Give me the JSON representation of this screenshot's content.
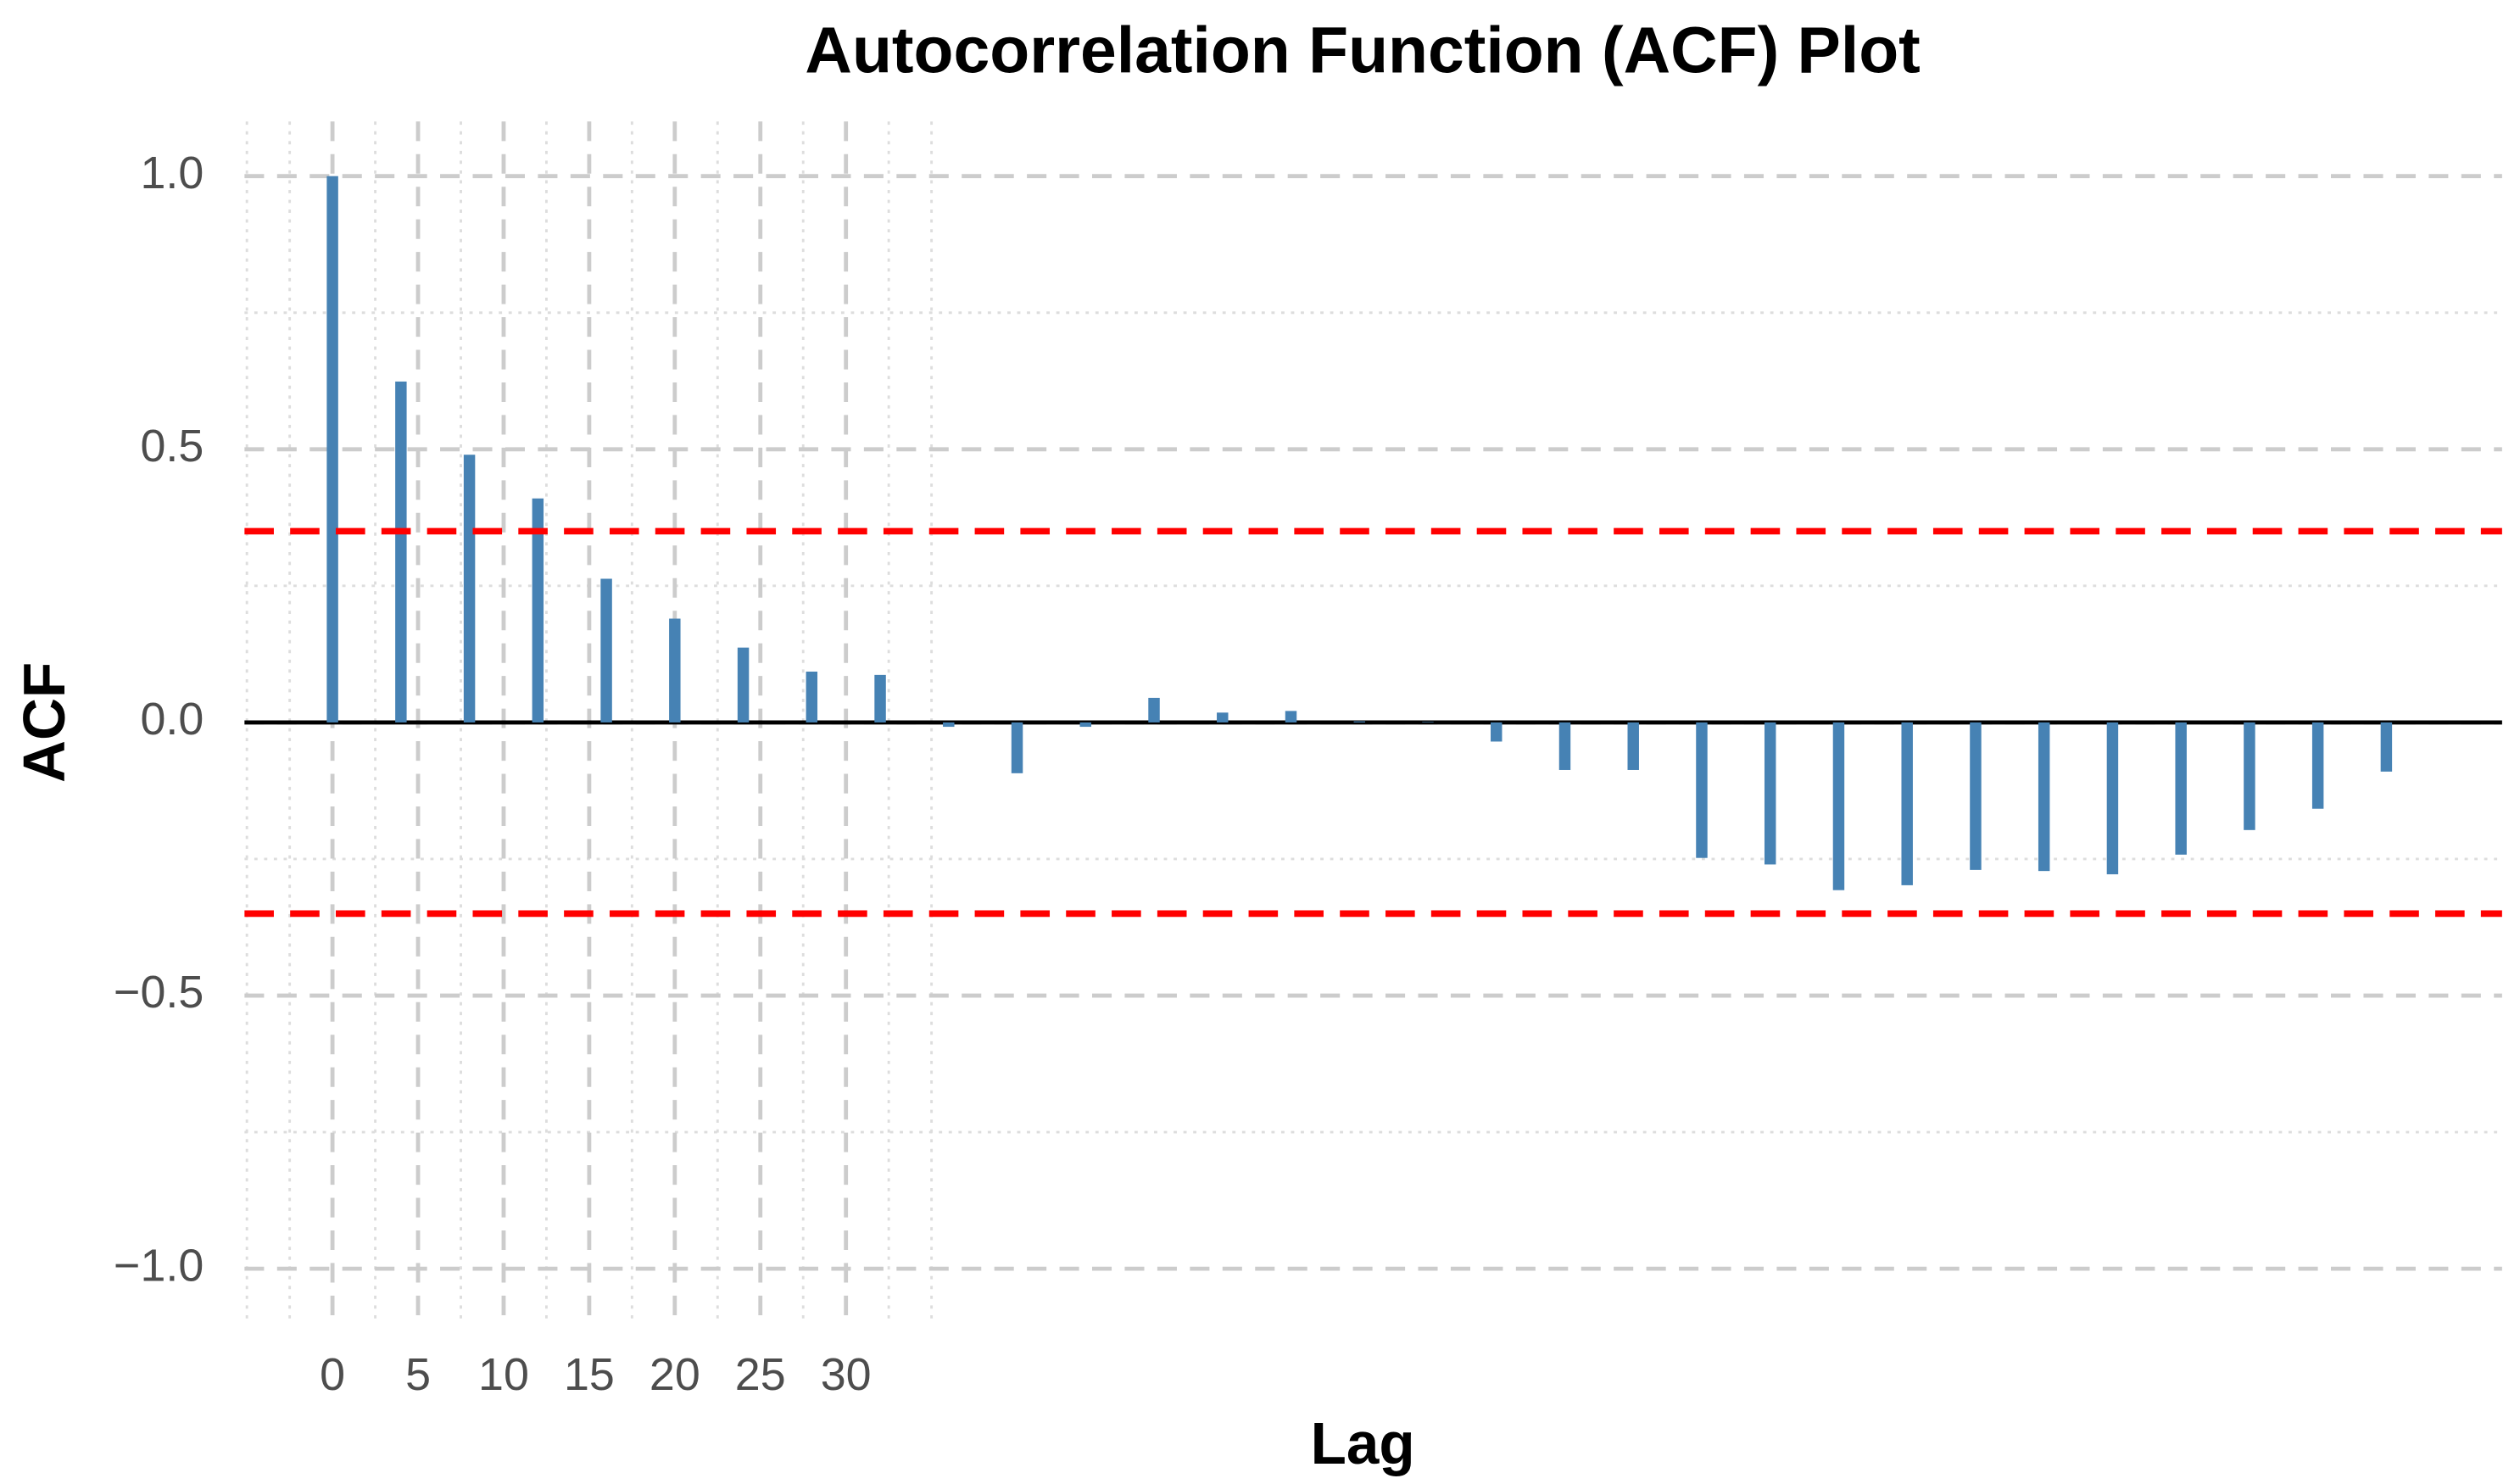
{
  "chart_data": {
    "type": "bar",
    "title": "Autocorrelation Function (ACF) Plot",
    "x_label": "Lag",
    "y_label": "ACF",
    "x": [
      0,
      4,
      8,
      12,
      16,
      20,
      24,
      28,
      32,
      36,
      40,
      44,
      48,
      52,
      56,
      60,
      64,
      68,
      72,
      76,
      80,
      84,
      88,
      92,
      96,
      100,
      104,
      108,
      112,
      116,
      120
    ],
    "values": [
      1.0,
      0.624,
      0.49,
      0.41,
      0.263,
      0.19,
      0.137,
      0.093,
      0.087,
      -0.008,
      -0.093,
      -0.008,
      0.045,
      0.018,
      0.021,
      0.002,
      0.001,
      -0.035,
      -0.087,
      -0.087,
      -0.248,
      -0.26,
      -0.307,
      -0.298,
      -0.27,
      -0.272,
      -0.278,
      -0.242,
      -0.197,
      -0.158,
      -0.09
    ],
    "color": "#4682b4",
    "confidence_bounds": [
      0.35,
      -0.35
    ],
    "confidence_color": "#ff0000",
    "xlim": [
      -5.14,
      126.76
    ],
    "xticks": [
      0,
      5,
      10,
      15,
      20,
      25,
      30
    ],
    "ylim": [
      -1.1,
      1.1
    ],
    "yticks": [
      {
        "value": 1,
        "label": "1.0"
      },
      {
        "value": 0.5,
        "label": "0.5"
      },
      {
        "value": 0,
        "label": "0.0"
      },
      {
        "value": -0.5,
        "label": "−0.5"
      },
      {
        "value": -1,
        "label": "−1.0"
      }
    ],
    "grid": true
  }
}
